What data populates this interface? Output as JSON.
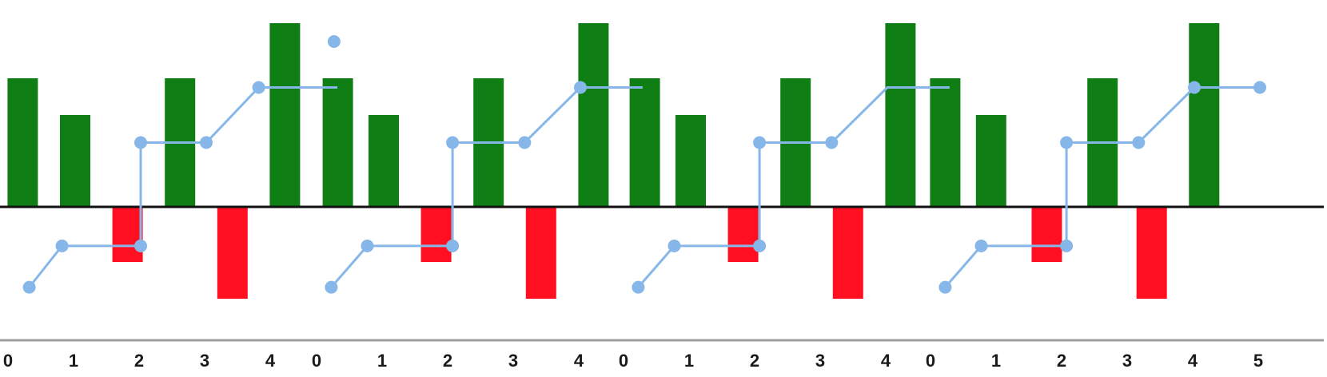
{
  "chart_data": {
    "type": "bar",
    "title": "",
    "xlabel": "",
    "ylabel": "",
    "ylim": [
      -3,
      5.2
    ],
    "grid": false,
    "legend": "none",
    "colors": {
      "positive": "#0f7e14",
      "negative": "#ff0f1f",
      "line": "#87b7e8",
      "zero_line": "#111111",
      "axis": "#9e9e9e"
    },
    "panels": [
      {
        "x_ticks": [
          "0",
          "1",
          "2",
          "3",
          "4"
        ],
        "bars": [
          {
            "x": 0.2,
            "value": 2.8
          },
          {
            "x": 1.0,
            "value": 2.0
          },
          {
            "x": 1.8,
            "value": -1.2
          },
          {
            "x": 2.6,
            "value": 2.8
          },
          {
            "x": 3.4,
            "value": -2.0
          },
          {
            "x": 4.2,
            "value": 4.0
          }
        ],
        "line": [
          {
            "x": 0.3,
            "y": -1.75
          },
          {
            "x": 0.8,
            "y": -0.85
          },
          {
            "x": 2.0,
            "y": -0.85
          },
          {
            "x": 2.0,
            "y": 1.4
          },
          {
            "x": 3.0,
            "y": 1.4
          },
          {
            "x": 3.8,
            "y": 2.6
          },
          {
            "x": 5.0,
            "y": 2.6
          }
        ],
        "line_markers": [
          0,
          1,
          2,
          3,
          4,
          5
        ],
        "extra_points": [
          {
            "x": 4.95,
            "y": 3.6
          }
        ]
      },
      {
        "x_ticks": [
          "0",
          "1",
          "2",
          "3",
          "4"
        ],
        "bars": [
          {
            "x": 0.3,
            "value": 2.8
          },
          {
            "x": 1.0,
            "value": 2.0
          },
          {
            "x": 1.8,
            "value": -1.2
          },
          {
            "x": 2.6,
            "value": 2.8
          },
          {
            "x": 3.4,
            "value": -2.0
          },
          {
            "x": 4.2,
            "value": 4.0
          }
        ],
        "line": [
          {
            "x": 0.2,
            "y": -1.75
          },
          {
            "x": 0.75,
            "y": -0.85
          },
          {
            "x": 2.05,
            "y": -0.85
          },
          {
            "x": 2.05,
            "y": 1.4
          },
          {
            "x": 3.15,
            "y": 1.4
          },
          {
            "x": 4.0,
            "y": 2.6
          },
          {
            "x": 4.95,
            "y": 2.6
          }
        ],
        "line_markers": [
          0,
          1,
          2,
          3,
          4,
          5
        ],
        "extra_points": []
      },
      {
        "x_ticks": [
          "0",
          "1",
          "2",
          "3",
          "4"
        ],
        "bars": [
          {
            "x": 0.3,
            "value": 2.8
          },
          {
            "x": 1.0,
            "value": 2.0
          },
          {
            "x": 1.8,
            "value": -1.2
          },
          {
            "x": 2.6,
            "value": 2.8
          },
          {
            "x": 3.4,
            "value": -2.0
          },
          {
            "x": 4.2,
            "value": 4.0
          }
        ],
        "line": [
          {
            "x": 0.2,
            "y": -1.75
          },
          {
            "x": 0.75,
            "y": -0.85
          },
          {
            "x": 2.05,
            "y": -0.85
          },
          {
            "x": 2.05,
            "y": 1.4
          },
          {
            "x": 3.15,
            "y": 1.4
          },
          {
            "x": 4.0,
            "y": 2.6
          },
          {
            "x": 4.95,
            "y": 2.6
          }
        ],
        "line_markers": [
          0,
          1,
          2,
          3,
          4
        ],
        "extra_points": []
      },
      {
        "x_ticks": [
          "0",
          "1",
          "2",
          "3",
          "4",
          "5"
        ],
        "bars": [
          {
            "x": 0.2,
            "value": 2.8
          },
          {
            "x": 0.9,
            "value": 2.0
          },
          {
            "x": 1.75,
            "value": -1.2
          },
          {
            "x": 2.6,
            "value": 2.8
          },
          {
            "x": 3.35,
            "value": -2.0
          },
          {
            "x": 4.15,
            "value": 4.0
          }
        ],
        "line": [
          {
            "x": 0.2,
            "y": -1.75
          },
          {
            "x": 0.75,
            "y": -0.85
          },
          {
            "x": 2.05,
            "y": -0.85
          },
          {
            "x": 2.05,
            "y": 1.4
          },
          {
            "x": 3.15,
            "y": 1.4
          },
          {
            "x": 4.0,
            "y": 2.6
          },
          {
            "x": 5.0,
            "y": 2.6
          }
        ],
        "line_markers": [
          0,
          1,
          2,
          3,
          4,
          5,
          6
        ],
        "extra_points": []
      }
    ]
  }
}
